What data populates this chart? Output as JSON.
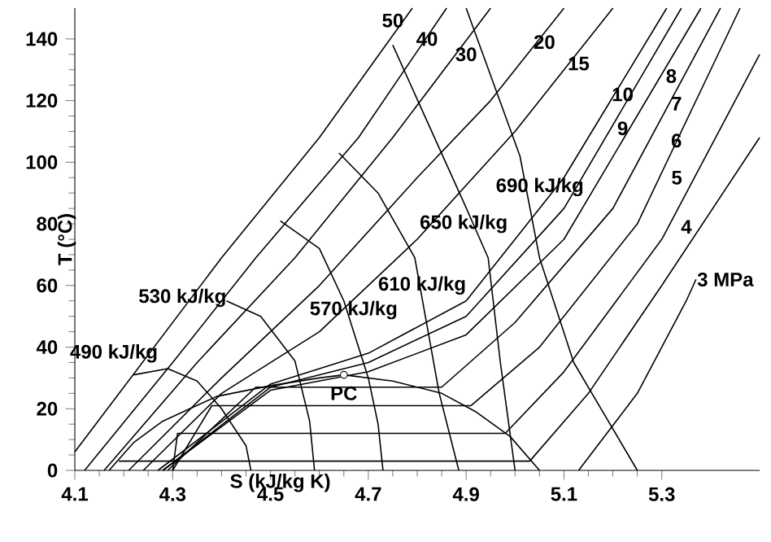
{
  "chart_data": {
    "type": "line",
    "xlabel": "S (kJ/kg K)",
    "ylabel": "T (°C)",
    "xlim": [
      4.1,
      5.5
    ],
    "ylim": [
      0,
      150
    ],
    "xticks": [
      4.1,
      4.3,
      4.5,
      4.7,
      4.9,
      5.1,
      5.3
    ],
    "yticks": [
      0,
      20,
      40,
      60,
      80,
      100,
      120,
      140
    ],
    "grid": false,
    "marker": "none",
    "line_style": "solid",
    "series": [
      {
        "color": "#000000",
        "x": [
          4.17,
          4.22,
          4.28,
          4.39,
          4.5,
          4.6,
          4.65,
          4.75,
          4.85,
          4.92,
          4.99,
          5.05
        ],
        "values": [
          0,
          9,
          16,
          24,
          27.5,
          30,
          31,
          29,
          25,
          19,
          11,
          0
        ]
      },
      {
        "color": "#000000",
        "x": [
          4.1,
          4.4,
          4.6,
          4.79
        ],
        "values": [
          6,
          69,
          108,
          150
        ]
      },
      {
        "color": "#000000",
        "x": [
          4.12,
          4.3,
          4.47,
          4.68,
          4.86
        ],
        "values": [
          0,
          35,
          69,
          108,
          150
        ]
      },
      {
        "color": "#000000",
        "x": [
          4.16,
          4.35,
          4.55,
          4.75,
          4.95
        ],
        "values": [
          0,
          35,
          69,
          108,
          150
        ]
      },
      {
        "color": "#000000",
        "x": [
          4.21,
          4.4,
          4.6,
          4.8,
          4.95,
          5.1
        ],
        "values": [
          0,
          30,
          60,
          95,
          120,
          150
        ]
      },
      {
        "color": "#000000",
        "x": [
          4.24,
          4.4,
          4.6,
          4.8,
          5.0,
          5.2
        ],
        "values": [
          0,
          25,
          45,
          75,
          110,
          150
        ]
      },
      {
        "color": "#000000",
        "x": [
          4.27,
          4.5,
          4.7,
          4.9,
          5.1,
          5.31
        ],
        "values": [
          0,
          28,
          38,
          55,
          95,
          150
        ]
      },
      {
        "color": "#000000",
        "x": [
          4.28,
          4.5,
          4.7,
          4.9,
          5.1,
          5.34
        ],
        "values": [
          0,
          27,
          35,
          50,
          85,
          150
        ]
      },
      {
        "color": "#000000",
        "x": [
          4.28,
          4.5,
          4.7,
          4.9,
          5.1,
          5.38
        ],
        "values": [
          0,
          26,
          32,
          44,
          75,
          150
        ]
      },
      {
        "color": "#000000",
        "x": [
          4.29,
          4.47,
          4.85,
          5.0,
          5.2,
          5.42
        ],
        "values": [
          0,
          27,
          27,
          48,
          85,
          150
        ]
      },
      {
        "color": "#000000",
        "x": [
          4.3,
          4.38,
          4.91,
          5.05,
          5.25,
          5.46
        ],
        "values": [
          0,
          21,
          21,
          40,
          80,
          150
        ]
      },
      {
        "color": "#000000",
        "x": [
          4.3,
          4.31,
          4.98,
          5.1,
          5.3,
          5.5
        ],
        "values": [
          0,
          12,
          12,
          32,
          75,
          135
        ]
      },
      {
        "color": "#000000",
        "x": [
          4.19,
          5.03,
          5.15,
          5.3,
          5.5
        ],
        "values": [
          3,
          3,
          25,
          60,
          108
        ]
      },
      {
        "color": "#000000",
        "x": [
          5.13,
          5.25,
          5.35,
          5.37
        ],
        "values": [
          0,
          25,
          55,
          62
        ]
      },
      {
        "color": "#000000",
        "x": [
          4.22,
          4.29,
          4.35,
          4.4,
          4.45,
          4.46
        ],
        "values": [
          31,
          33,
          29,
          20,
          8,
          0
        ]
      },
      {
        "color": "#000000",
        "x": [
          4.41,
          4.48,
          4.55,
          4.58,
          4.59
        ],
        "values": [
          55,
          50,
          35.5,
          16,
          0
        ]
      },
      {
        "color": "#000000",
        "x": [
          4.52,
          4.6,
          4.65,
          4.7,
          4.72,
          4.73
        ],
        "values": [
          81,
          72,
          55,
          30,
          15,
          0
        ]
      },
      {
        "color": "#000000",
        "x": [
          4.64,
          4.72,
          4.795,
          4.845,
          4.885
        ],
        "values": [
          103,
          90,
          69,
          25,
          0
        ]
      },
      {
        "color": "#000000",
        "x": [
          4.75,
          4.895,
          4.945,
          4.97,
          5.0
        ],
        "values": [
          138,
          87,
          69,
          35,
          0
        ]
      },
      {
        "color": "#000000",
        "x": [
          4.9,
          5.01,
          5.05,
          5.12,
          5.25
        ],
        "values": [
          150,
          102,
          69,
          35,
          0
        ]
      },
      {
        "type": "scatter",
        "marker": "circle",
        "color": "#000000",
        "x": [
          4.65
        ],
        "values": [
          31
        ]
      }
    ],
    "annotations": [
      {
        "text": "PC",
        "x": 4.65,
        "y": 25
      },
      {
        "text": "50",
        "x": 4.75,
        "y": 146
      },
      {
        "text": "40",
        "x": 4.82,
        "y": 140
      },
      {
        "text": "30",
        "x": 4.9,
        "y": 135
      },
      {
        "text": "20",
        "x": 5.06,
        "y": 139
      },
      {
        "text": "15",
        "x": 5.13,
        "y": 132
      },
      {
        "text": "10",
        "x": 5.22,
        "y": 122
      },
      {
        "text": "9",
        "x": 5.22,
        "y": 111
      },
      "8",
      {
        "text": "7",
        "x": 5.33,
        "y": 119
      },
      {
        "text": "6",
        "x": 5.33,
        "y": 107
      },
      "5",
      "4",
      "3 MPa",
      "490 kJ/kg",
      {
        "text": "530 kJ/kg",
        "x": 4.32,
        "y": 56
      },
      {
        "text": "570 kJ/kg",
        "x": 4.67,
        "y": 52
      },
      {
        "text": "610 kJ/kg",
        "x": 4.81,
        "y": 60
      },
      {
        "text": "650 kJ/kg",
        "x": 4.895,
        "y": 80
      },
      "690 kJ/kg"
    ]
  }
}
